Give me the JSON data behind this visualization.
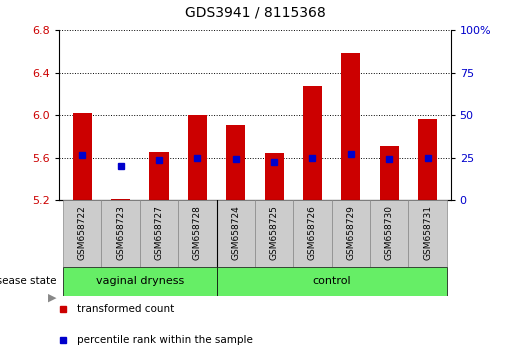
{
  "title": "GDS3941 / 8115368",
  "samples": [
    "GSM658722",
    "GSM658723",
    "GSM658727",
    "GSM658728",
    "GSM658724",
    "GSM658725",
    "GSM658726",
    "GSM658729",
    "GSM658730",
    "GSM658731"
  ],
  "bar_values": [
    6.02,
    5.21,
    5.65,
    6.0,
    5.91,
    5.64,
    6.27,
    6.58,
    5.71,
    5.96
  ],
  "bar_base": 5.2,
  "blue_values": [
    5.62,
    5.52,
    5.58,
    5.6,
    5.59,
    5.56,
    5.6,
    5.63,
    5.59,
    5.6
  ],
  "ylim": [
    5.2,
    6.8
  ],
  "yticks_left": [
    5.2,
    5.6,
    6.0,
    6.4,
    6.8
  ],
  "yticks_right": [
    0,
    25,
    50,
    75,
    100
  ],
  "bar_color": "#cc0000",
  "blue_color": "#0000cc",
  "n_group1": 4,
  "group1_label": "vaginal dryness",
  "group2_label": "control",
  "group_color": "#66ee66",
  "xlabel_left": "disease state",
  "bar_width": 0.5,
  "blue_marker_size": 5,
  "ytick_color_left": "#cc0000",
  "ytick_color_right": "#0000cc",
  "grid_color": "black",
  "sample_box_color": "#cccccc",
  "legend_red_label": "transformed count",
  "legend_blue_label": "percentile rank within the sample"
}
